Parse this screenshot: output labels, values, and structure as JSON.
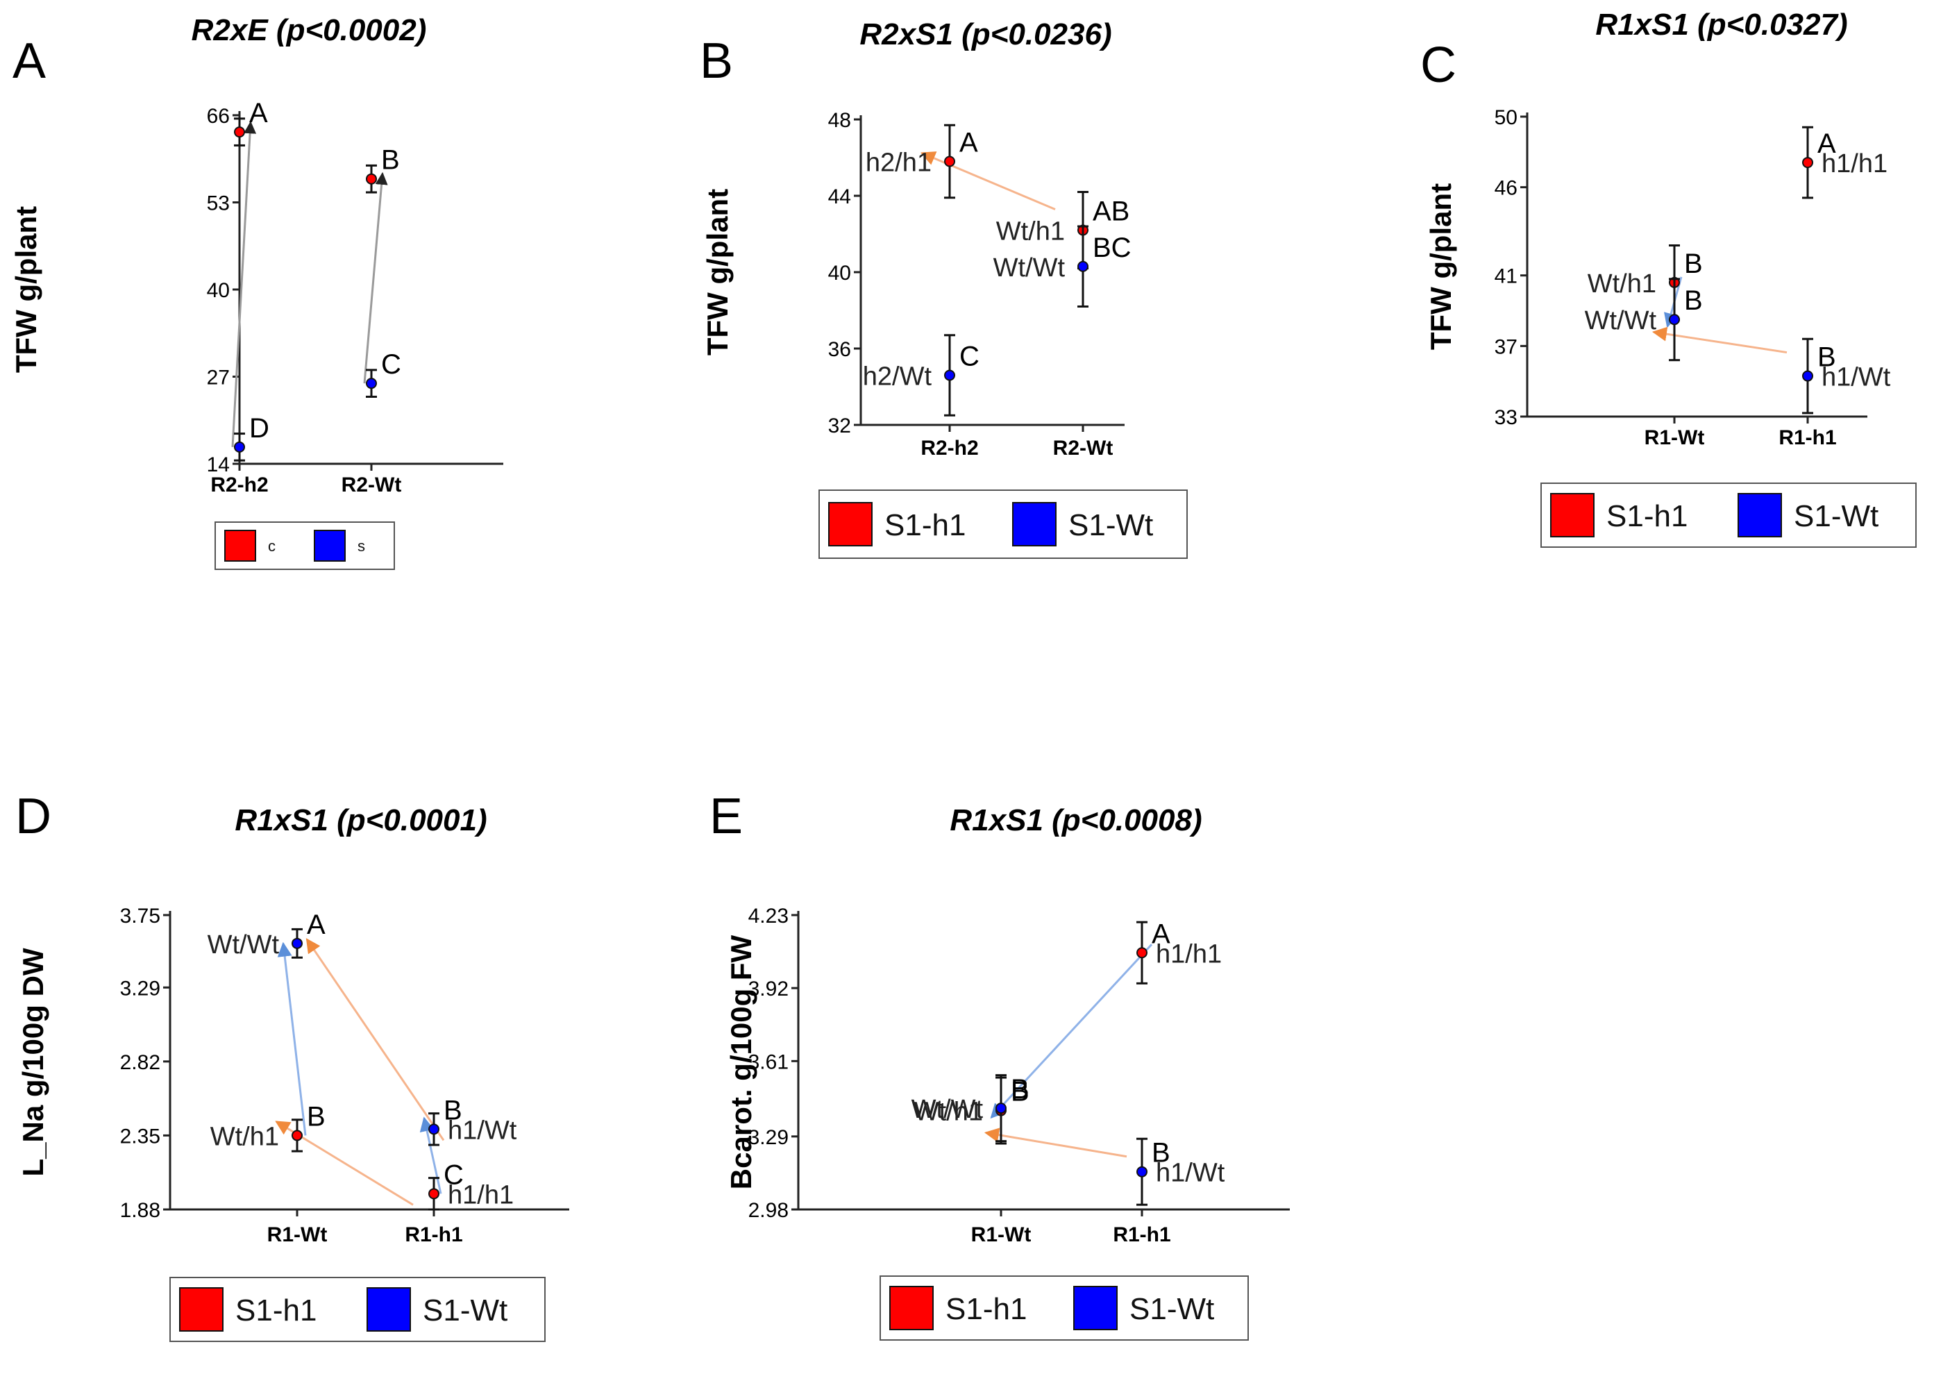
{
  "chart_data": [
    {
      "type": "scatter",
      "panel_letter": "A",
      "title": "R2xE (p<0.0002)",
      "ylabel": "TFW g/plant",
      "xlabel": "",
      "categories": [
        "R2-h2",
        "R2-Wt"
      ],
      "yticks": [
        "66",
        "53",
        "40",
        "27",
        "14"
      ],
      "ylim": [
        14,
        66
      ],
      "series": [
        {
          "name": "c",
          "color": "#ff0000",
          "values": [
            63.5,
            56.5
          ],
          "errors": [
            2.0,
            2.0
          ],
          "letters": [
            "A",
            "B"
          ],
          "labels": [
            "",
            ""
          ]
        },
        {
          "name": "s",
          "color": "#0000ff",
          "values": [
            16.5,
            26.0
          ],
          "errors": [
            2.0,
            2.0
          ],
          "letters": [
            "D",
            "C"
          ],
          "labels": [
            "",
            ""
          ]
        }
      ],
      "legend": [
        "c",
        "s"
      ],
      "legend_font_size": "small"
    },
    {
      "type": "scatter",
      "panel_letter": "B",
      "title": "R2xS1 (p<0.0236)",
      "ylabel": "TFW g/plant",
      "xlabel": "",
      "categories": [
        "R2-h2",
        "R2-Wt"
      ],
      "yticks": [
        "48",
        "44",
        "40",
        "36",
        "32"
      ],
      "ylim": [
        32,
        48
      ],
      "series": [
        {
          "name": "S1-h1",
          "color": "#ff0000",
          "values": [
            45.8,
            42.2
          ],
          "errors": [
            1.9,
            2.0
          ],
          "letters": [
            "A",
            "AB"
          ],
          "labels": [
            "h2/h1",
            "Wt/h1"
          ]
        },
        {
          "name": "S1-Wt",
          "color": "#0000ff",
          "values": [
            34.6,
            40.3
          ],
          "errors": [
            2.1,
            2.1
          ],
          "letters": [
            "C",
            "BC"
          ],
          "labels": [
            "h2/Wt",
            "Wt/Wt"
          ]
        }
      ],
      "legend": [
        "S1-h1",
        "S1-Wt"
      ]
    },
    {
      "type": "scatter",
      "panel_letter": "C",
      "title": "R1xS1 (p<0.0327)",
      "ylabel": "TFW g/plant",
      "xlabel": "",
      "categories": [
        "R1-Wt",
        "R1-h1"
      ],
      "yticks": [
        "50",
        "46",
        "41",
        "37",
        "33"
      ],
      "ylim": [
        33,
        50
      ],
      "series": [
        {
          "name": "S1-h1",
          "color": "#ff0000",
          "values": [
            40.6,
            47.4
          ],
          "errors": [
            2.1,
            2.0
          ],
          "letters": [
            "B",
            "A"
          ],
          "labels": [
            "Wt/h1",
            "h1/h1"
          ]
        },
        {
          "name": "S1-Wt",
          "color": "#0000ff",
          "values": [
            38.5,
            35.3
          ],
          "errors": [
            2.3,
            2.1
          ],
          "letters": [
            "B",
            "B"
          ],
          "labels": [
            "Wt/Wt",
            "h1/Wt"
          ]
        }
      ],
      "legend": [
        "S1-h1",
        "S1-Wt"
      ]
    },
    {
      "type": "scatter",
      "panel_letter": "D",
      "title": "R1xS1 (p<0.0001)",
      "ylabel": "L_Na g/100g DW",
      "xlabel": "",
      "categories": [
        "R1-Wt",
        "R1-h1"
      ],
      "yticks": [
        "3.75",
        "3.29",
        "2.82",
        "2.35",
        "1.88"
      ],
      "ylim": [
        1.88,
        3.75
      ],
      "series": [
        {
          "name": "S1-h1",
          "color": "#ff0000",
          "values": [
            2.35,
            1.98
          ],
          "errors": [
            0.1,
            0.1
          ],
          "letters": [
            "B",
            "C"
          ],
          "labels": [
            "Wt/h1",
            "h1/h1"
          ]
        },
        {
          "name": "S1-Wt",
          "color": "#0000ff",
          "values": [
            3.57,
            2.39
          ],
          "errors": [
            0.09,
            0.1
          ],
          "letters": [
            "A",
            "B"
          ],
          "labels": [
            "Wt/Wt",
            "h1/Wt"
          ]
        }
      ],
      "legend": [
        "S1-h1",
        "S1-Wt"
      ]
    },
    {
      "type": "scatter",
      "panel_letter": "E",
      "title": "R1xS1 (p<0.0008)",
      "ylabel": "Bcarot. g/100g FW",
      "xlabel": "",
      "categories": [
        "R1-Wt",
        "R1-h1"
      ],
      "yticks": [
        "4.23",
        "3.92",
        "3.61",
        "3.29",
        "2.98"
      ],
      "ylim": [
        2.98,
        4.23
      ],
      "series": [
        {
          "name": "S1-h1",
          "color": "#ff0000",
          "values": [
            3.4,
            4.07
          ],
          "errors": [
            0.14,
            0.13
          ],
          "letters": [
            "B",
            "A"
          ],
          "labels": [
            "Wt/h1",
            "h1/h1"
          ]
        },
        {
          "name": "S1-Wt",
          "color": "#0000ff",
          "values": [
            3.41,
            3.14
          ],
          "errors": [
            0.14,
            0.14
          ],
          "letters": [
            "B",
            "B"
          ],
          "labels": [
            "Wt/Wt",
            "h1/Wt"
          ]
        }
      ],
      "legend": [
        "S1-h1",
        "S1-Wt"
      ]
    }
  ]
}
